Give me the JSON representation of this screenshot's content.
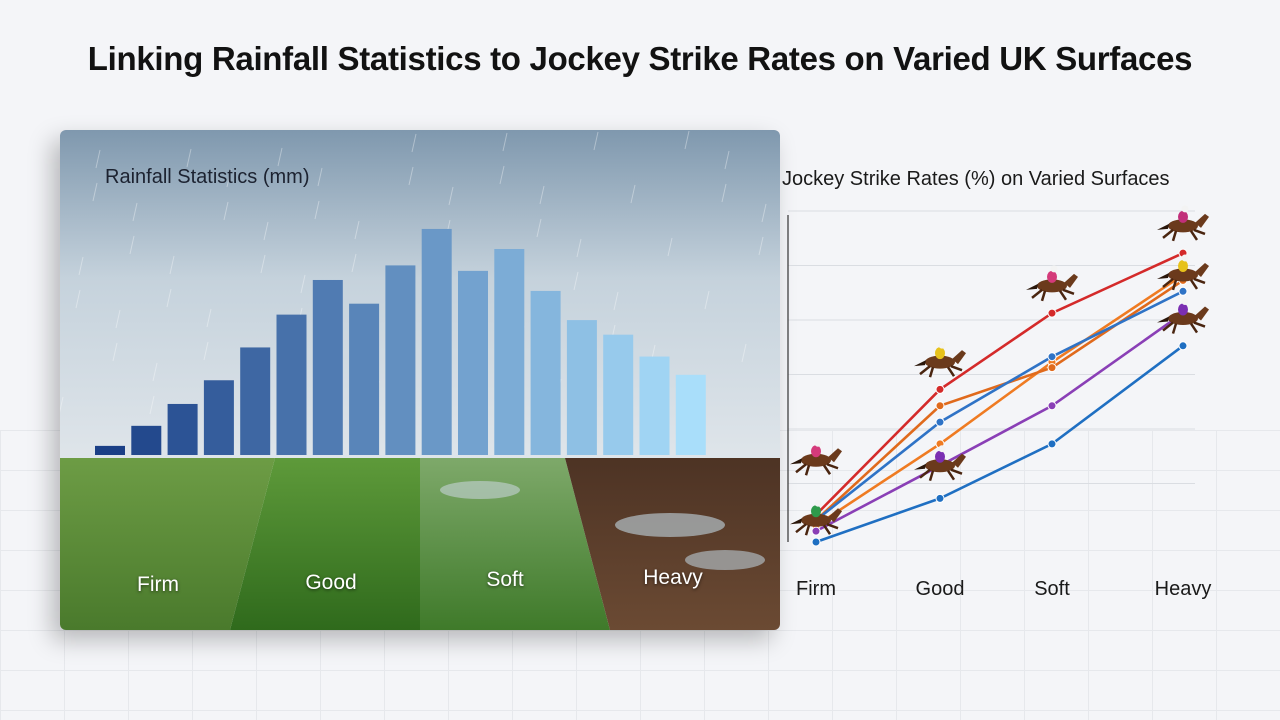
{
  "title": "Linking Rainfall Statistics to Jockey Strike Rates on Varied UK Surfaces",
  "surfaces": [
    "Firm",
    "Good",
    "Soft",
    "Heavy"
  ],
  "colors": {
    "bar_dark": "#1a3f86",
    "bar_light": "#a9defa",
    "grass": "#4f8a2e",
    "mud": "#5a3a28"
  },
  "chart_data": [
    {
      "type": "bar",
      "title": "Rainfall Statistics (mm)",
      "values": [
        5,
        16,
        28,
        41,
        59,
        77,
        96,
        83,
        104,
        124,
        101,
        113,
        90,
        74,
        66,
        54,
        44
      ],
      "ylim": [
        0,
        130
      ],
      "grid": false
    },
    {
      "type": "line",
      "title": "Jockey Strike Rates (%) on Varied Surfaces",
      "categories": [
        "Firm",
        "Good",
        "Soft",
        "Heavy"
      ],
      "ylim": [
        0,
        60
      ],
      "grid": true,
      "series": [
        {
          "color": "#d42a2a",
          "values": [
            5,
            28,
            42,
            53
          ]
        },
        {
          "color": "#ef7b22",
          "values": [
            3,
            18,
            33,
            49
          ]
        },
        {
          "color": "#e06a1c",
          "values": [
            4,
            25,
            32,
            48
          ]
        },
        {
          "color": "#2f73c6",
          "values": [
            4,
            22,
            34,
            46
          ]
        },
        {
          "color": "#8a3fb6",
          "values": [
            2,
            14,
            25,
            42
          ]
        },
        {
          "color": "#1f6fc2",
          "values": [
            0,
            8,
            18,
            36
          ]
        }
      ],
      "jockey_markers": [
        {
          "category": "Firm",
          "value": 15
        },
        {
          "category": "Firm",
          "value": 4
        },
        {
          "category": "Good",
          "value": 33
        },
        {
          "category": "Good",
          "value": 14
        },
        {
          "category": "Soft",
          "value": 47
        },
        {
          "category": "Heavy",
          "value": 58
        },
        {
          "category": "Heavy",
          "value": 49
        },
        {
          "category": "Heavy",
          "value": 41
        }
      ]
    }
  ]
}
